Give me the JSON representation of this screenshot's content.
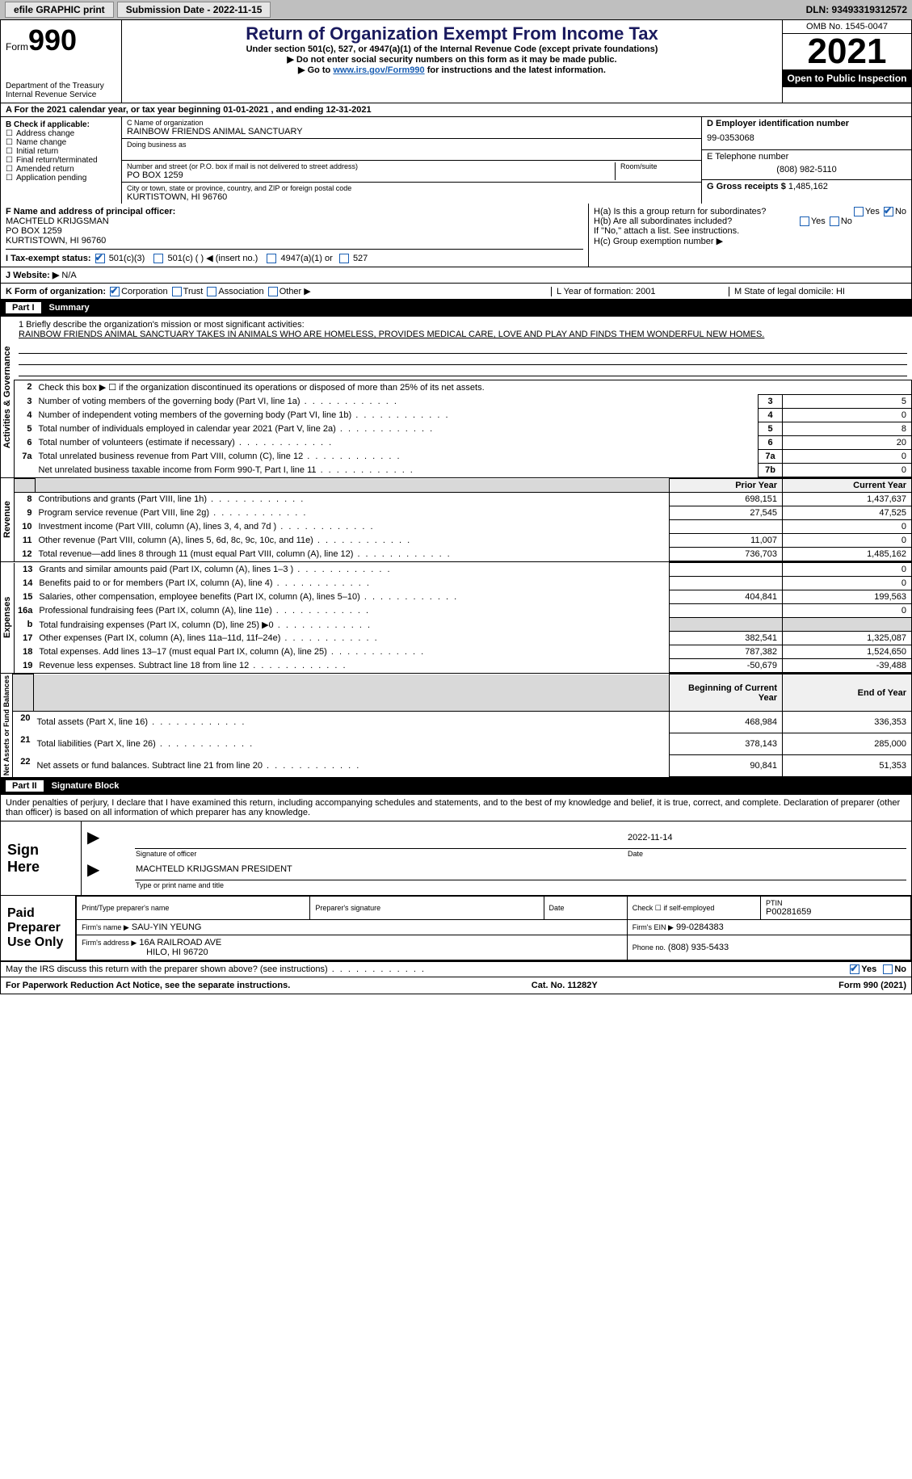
{
  "topbar": {
    "efile": "efile GRAPHIC print",
    "submission": "Submission Date - 2022-11-15",
    "dln": "DLN: 93493319312572"
  },
  "header": {
    "form_label": "Form",
    "form_no": "990",
    "title": "Return of Organization Exempt From Income Tax",
    "subtitle": "Under section 501(c), 527, or 4947(a)(1) of the Internal Revenue Code (except private foundations)",
    "note1": "▶ Do not enter social security numbers on this form as it may be made public.",
    "note2_pre": "▶ Go to ",
    "note2_link": "www.irs.gov/Form990",
    "note2_post": " for instructions and the latest information.",
    "dept": "Department of the Treasury\nInternal Revenue Service",
    "omb": "OMB No. 1545-0047",
    "year": "2021",
    "otp": "Open to Public Inspection"
  },
  "row_a": "A For the 2021 calendar year, or tax year beginning 01-01-2021   , and ending 12-31-2021",
  "col_b": {
    "title": "B Check if applicable:",
    "items": [
      "Address change",
      "Name change",
      "Initial return",
      "Final return/terminated",
      "Amended return",
      "Application pending"
    ]
  },
  "block_c": {
    "name_label": "C Name of organization",
    "name": "RAINBOW FRIENDS ANIMAL SANCTUARY",
    "dba_label": "Doing business as",
    "addr_label": "Number and street (or P.O. box if mail is not delivered to street address)",
    "room_label": "Room/suite",
    "addr": "PO BOX 1259",
    "city_label": "City or town, state or province, country, and ZIP or foreign postal code",
    "city": "KURTISTOWN, HI  96760"
  },
  "block_right": {
    "d_label": "D Employer identification number",
    "d_val": "99-0353068",
    "e_label": "E Telephone number",
    "e_val": "(808) 982-5110",
    "g_label": "G Gross receipts $",
    "g_val": "1,485,162"
  },
  "block_f": {
    "label": "F Name and address of principal officer:",
    "name": "MACHTELD KRIJGSMAN",
    "addr1": "PO BOX 1259",
    "addr2": "KURTISTOWN, HI  96760"
  },
  "block_h": {
    "a": "H(a)  Is this a group return for subordinates?",
    "b": "H(b)  Are all subordinates included?",
    "b_note": "If \"No,\" attach a list. See instructions.",
    "c": "H(c)  Group exemption number ▶"
  },
  "row_i": {
    "label": "I  Tax-exempt status:",
    "opt1": "501(c)(3)",
    "opt2": "501(c) (   ) ◀ (insert no.)",
    "opt3": "4947(a)(1) or",
    "opt4": "527"
  },
  "row_j": {
    "label": "J  Website: ▶",
    "val": "N/A"
  },
  "row_k": {
    "label": "K Form of organization:",
    "opts": [
      "Corporation",
      "Trust",
      "Association",
      "Other ▶"
    ],
    "l": "L Year of formation: 2001",
    "m": "M State of legal domicile: HI"
  },
  "part1": {
    "no": "Part I",
    "title": "Summary"
  },
  "mission": {
    "label": "1   Briefly describe the organization's mission or most significant activities:",
    "text": "RAINBOW FRIENDS ANIMAL SANCTUARY TAKES IN ANIMALS WHO ARE HOMELESS, PROVIDES MEDICAL CARE, LOVE AND PLAY AND FINDS THEM WONDERFUL NEW HOMES."
  },
  "line2": "Check this box ▶ ☐  if the organization discontinued its operations or disposed of more than 25% of its net assets.",
  "gov_lines": [
    {
      "n": "3",
      "d": "Number of voting members of the governing body (Part VI, line 1a)",
      "box": "3",
      "v": "5"
    },
    {
      "n": "4",
      "d": "Number of independent voting members of the governing body (Part VI, line 1b)",
      "box": "4",
      "v": "0"
    },
    {
      "n": "5",
      "d": "Total number of individuals employed in calendar year 2021 (Part V, line 2a)",
      "box": "5",
      "v": "8"
    },
    {
      "n": "6",
      "d": "Total number of volunteers (estimate if necessary)",
      "box": "6",
      "v": "20"
    },
    {
      "n": "7a",
      "d": "Total unrelated business revenue from Part VIII, column (C), line 12",
      "box": "7a",
      "v": "0"
    },
    {
      "n": "",
      "d": "Net unrelated business taxable income from Form 990-T, Part I, line 11",
      "box": "7b",
      "v": "0"
    }
  ],
  "col_headers": {
    "py": "Prior Year",
    "cy": "Current Year"
  },
  "rev_lines": [
    {
      "n": "8",
      "d": "Contributions and grants (Part VIII, line 1h)",
      "py": "698,151",
      "cy": "1,437,637"
    },
    {
      "n": "9",
      "d": "Program service revenue (Part VIII, line 2g)",
      "py": "27,545",
      "cy": "47,525"
    },
    {
      "n": "10",
      "d": "Investment income (Part VIII, column (A), lines 3, 4, and 7d )",
      "py": "",
      "cy": "0"
    },
    {
      "n": "11",
      "d": "Other revenue (Part VIII, column (A), lines 5, 6d, 8c, 9c, 10c, and 11e)",
      "py": "11,007",
      "cy": "0"
    },
    {
      "n": "12",
      "d": "Total revenue—add lines 8 through 11 (must equal Part VIII, column (A), line 12)",
      "py": "736,703",
      "cy": "1,485,162"
    }
  ],
  "exp_lines": [
    {
      "n": "13",
      "d": "Grants and similar amounts paid (Part IX, column (A), lines 1–3 )",
      "py": "",
      "cy": "0"
    },
    {
      "n": "14",
      "d": "Benefits paid to or for members (Part IX, column (A), line 4)",
      "py": "",
      "cy": "0"
    },
    {
      "n": "15",
      "d": "Salaries, other compensation, employee benefits (Part IX, column (A), lines 5–10)",
      "py": "404,841",
      "cy": "199,563"
    },
    {
      "n": "16a",
      "d": "Professional fundraising fees (Part IX, column (A), line 11e)",
      "py": "",
      "cy": "0"
    },
    {
      "n": "b",
      "d": "Total fundraising expenses (Part IX, column (D), line 25) ▶0",
      "py": "GREY",
      "cy": "GREY"
    },
    {
      "n": "17",
      "d": "Other expenses (Part IX, column (A), lines 11a–11d, 11f–24e)",
      "py": "382,541",
      "cy": "1,325,087"
    },
    {
      "n": "18",
      "d": "Total expenses. Add lines 13–17 (must equal Part IX, column (A), line 25)",
      "py": "787,382",
      "cy": "1,524,650"
    },
    {
      "n": "19",
      "d": "Revenue less expenses. Subtract line 18 from line 12",
      "py": "-50,679",
      "cy": "-39,488"
    }
  ],
  "net_headers": {
    "b": "Beginning of Current Year",
    "e": "End of Year"
  },
  "net_lines": [
    {
      "n": "20",
      "d": "Total assets (Part X, line 16)",
      "py": "468,984",
      "cy": "336,353"
    },
    {
      "n": "21",
      "d": "Total liabilities (Part X, line 26)",
      "py": "378,143",
      "cy": "285,000"
    },
    {
      "n": "22",
      "d": "Net assets or fund balances. Subtract line 21 from line 20",
      "py": "90,841",
      "cy": "51,353"
    }
  ],
  "sides": {
    "gov": "Activities & Governance",
    "rev": "Revenue",
    "exp": "Expenses",
    "net": "Net Assets or\nFund Balances"
  },
  "part2": {
    "no": "Part II",
    "title": "Signature Block"
  },
  "penalty": "Under penalties of perjury, I declare that I have examined this return, including accompanying schedules and statements, and to the best of my knowledge and belief, it is true, correct, and complete. Declaration of preparer (other than officer) is based on all information of which preparer has any knowledge.",
  "sign": {
    "here": "Sign Here",
    "sig_label": "Signature of officer",
    "date": "2022-11-14",
    "date_label": "Date",
    "name": "MACHTELD KRIJGSMAN  PRESIDENT",
    "name_label": "Type or print name and title"
  },
  "paid": {
    "title": "Paid Preparer Use Only",
    "h1": "Print/Type preparer's name",
    "h2": "Preparer's signature",
    "h3": "Date",
    "h4_pre": "Check ☐ if self-employed",
    "h5": "PTIN",
    "ptin": "P00281659",
    "firm_name_label": "Firm's name   ▶",
    "firm_name": "SAU-YIN YEUNG",
    "firm_ein_label": "Firm's EIN ▶",
    "firm_ein": "99-0284383",
    "firm_addr_label": "Firm's address ▶",
    "firm_addr1": "16A RAILROAD AVE",
    "firm_addr2": "HILO, HI  96720",
    "phone_label": "Phone no.",
    "phone": "(808) 935-5433"
  },
  "may_discuss": "May the IRS discuss this return with the preparer shown above? (see instructions)",
  "footer": {
    "l": "For Paperwork Reduction Act Notice, see the separate instructions.",
    "m": "Cat. No. 11282Y",
    "r": "Form 990 (2021)"
  },
  "yes": "Yes",
  "no": "No"
}
